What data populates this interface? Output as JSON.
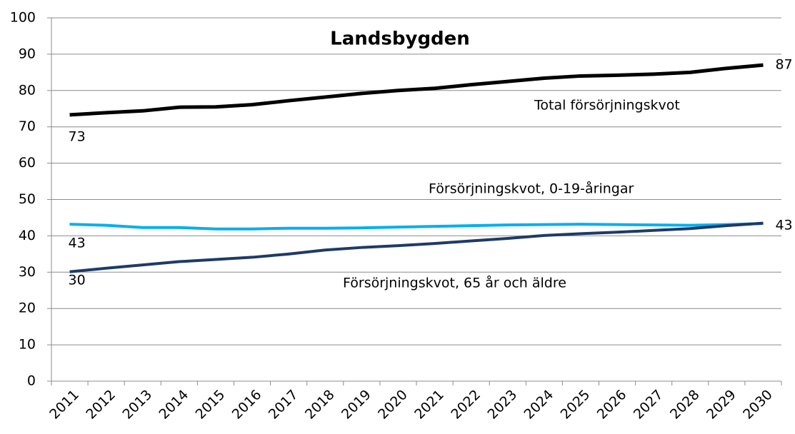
{
  "chart_data": {
    "type": "line",
    "title": "Landsbygden",
    "categories": [
      "2011",
      "2012",
      "2013",
      "2014",
      "2015",
      "2016",
      "2017",
      "2018",
      "2019",
      "2020",
      "2021",
      "2022",
      "2023",
      "2024",
      "2025",
      "2026",
      "2027",
      "2028",
      "2029",
      "2030"
    ],
    "series": [
      {
        "name": "Total försörjningskvot",
        "color": "#000000",
        "values": [
          73.3,
          73.9,
          74.4,
          75.4,
          75.5,
          76.1,
          77.2,
          78.2,
          79.2,
          80.0,
          80.6,
          81.6,
          82.5,
          83.4,
          84.0,
          84.2,
          84.5,
          85.0,
          86.1,
          87.0
        ],
        "value_labels": [
          "73",
          null,
          null,
          null,
          null,
          null,
          null,
          null,
          null,
          null,
          null,
          null,
          null,
          null,
          null,
          null,
          null,
          null,
          null,
          "87"
        ]
      },
      {
        "name": "Försörjningskvot, 0-19-åringar",
        "color": "#00b0f0",
        "values": [
          43.2,
          42.9,
          42.3,
          42.3,
          41.9,
          41.9,
          42.1,
          42.1,
          42.2,
          42.4,
          42.6,
          42.8,
          43.0,
          43.1,
          43.2,
          43.1,
          43.0,
          42.9,
          43.1,
          43.4
        ],
        "value_labels": [
          "43",
          null,
          null,
          null,
          null,
          null,
          null,
          null,
          null,
          null,
          null,
          null,
          null,
          null,
          null,
          null,
          null,
          null,
          null,
          "43"
        ]
      },
      {
        "name": "Försörjningskvot, 65 år och äldre",
        "color": "#1f3a68",
        "values": [
          30.1,
          31.1,
          32.0,
          32.9,
          33.5,
          34.1,
          35.0,
          36.1,
          36.8,
          37.3,
          37.9,
          38.6,
          39.3,
          40.1,
          40.6,
          41.0,
          41.5,
          42.0,
          42.8,
          43.5
        ],
        "value_labels": [
          "30",
          null,
          null,
          null,
          null,
          null,
          null,
          null,
          null,
          null,
          null,
          null,
          null,
          null,
          null,
          null,
          null,
          null,
          null,
          null
        ]
      }
    ],
    "ylim": [
      0,
      100
    ],
    "yticks": [
      0,
      10,
      20,
      30,
      40,
      50,
      60,
      70,
      80,
      90,
      100
    ],
    "grid": true
  }
}
